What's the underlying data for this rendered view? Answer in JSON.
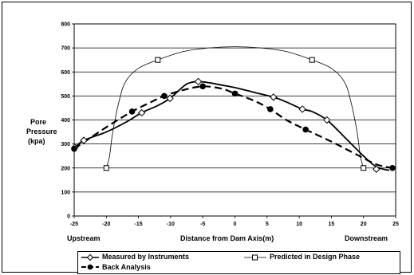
{
  "chart_data": {
    "type": "line",
    "xlabel": "Distance from Dam Axis(m)",
    "ylabel": "Pore Pressure (kpa)",
    "ylabel_lines": [
      "Pore",
      "Pressure",
      "(kpa)"
    ],
    "xlim": [
      -25,
      25
    ],
    "ylim": [
      0,
      800
    ],
    "xticks": [
      -25,
      -20,
      -15,
      -10,
      -5,
      0,
      5,
      10,
      15,
      20,
      25
    ],
    "yticks": [
      0,
      100,
      200,
      300,
      400,
      500,
      600,
      700,
      800
    ],
    "grid": "horizontal",
    "annotations": {
      "left": "Upstream",
      "right": "Downstream"
    },
    "legend_position": "bottom",
    "series": [
      {
        "name": "Measured by Instruments",
        "marker": "diamond-open",
        "style": "solid",
        "x": [
          -24.9,
          -23.5,
          -14.5,
          -10.1,
          -5.7,
          6.0,
          10.5,
          14.3,
          22.0
        ],
        "y": [
          285,
          315,
          430,
          490,
          560,
          495,
          445,
          400,
          195
        ],
        "curve_x": [
          -24.9,
          -23.5,
          -20,
          -17,
          -14.5,
          -12,
          -10.1,
          -8,
          -7,
          -5.7,
          -4,
          -2,
          0,
          3,
          6,
          8,
          10.5,
          12,
          14.3,
          17,
          20,
          22,
          24
        ],
        "curve_y": [
          285,
          315,
          350,
          390,
          430,
          460,
          490,
          540,
          555,
          560,
          555,
          545,
          535,
          515,
          495,
          475,
          445,
          435,
          400,
          330,
          250,
          205,
          190
        ]
      },
      {
        "name": "Predicted in Design Phase",
        "marker": "square-open",
        "style": "thin",
        "x": [
          -20,
          -12,
          12,
          20
        ],
        "y": [
          200,
          650,
          650,
          200
        ],
        "curve_x": [
          -20,
          -19.5,
          -19,
          -18,
          -17,
          -15,
          -12,
          -8,
          -4,
          0,
          4,
          8,
          12,
          15,
          17,
          18,
          19,
          19.5,
          20
        ],
        "curve_y": [
          200,
          250,
          350,
          480,
          560,
          615,
          650,
          685,
          700,
          705,
          700,
          685,
          650,
          615,
          560,
          480,
          350,
          250,
          200
        ]
      },
      {
        "name": "Back Analysis",
        "marker": "circle-filled",
        "style": "dashed",
        "x": [
          -25,
          -16,
          -11,
          -5,
          0,
          5.5,
          11,
          24.5
        ],
        "y": [
          280,
          435,
          500,
          540,
          510,
          445,
          360,
          200
        ],
        "curve_x": [
          -25,
          -20,
          -16,
          -13,
          -11,
          -8,
          -5,
          -2,
          0,
          3,
          5.5,
          8,
          11,
          15,
          19,
          22,
          24.5
        ],
        "curve_y": [
          280,
          370,
          435,
          475,
          500,
          525,
          540,
          530,
          510,
          480,
          445,
          400,
          360,
          310,
          255,
          215,
          200
        ]
      }
    ]
  },
  "colors": {
    "line": "#000000",
    "grid": "#000000",
    "background": "#ffffff"
  }
}
